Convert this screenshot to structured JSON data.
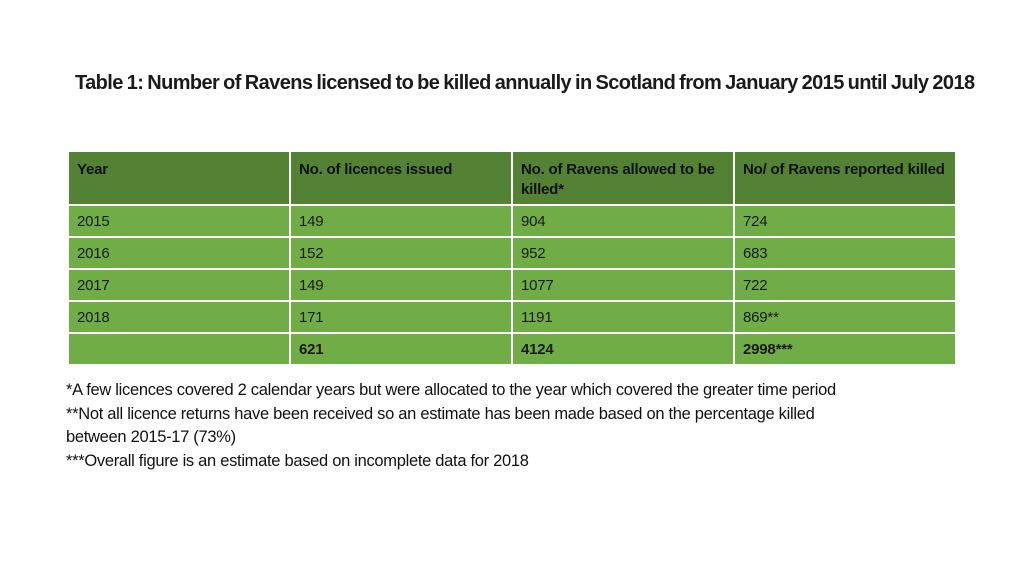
{
  "page": {
    "background_color": "#ffffff",
    "text_color": "#1a1a1a"
  },
  "title": "Table 1: Number of Ravens licensed to be killed annually in Scotland from January 2015 until July 2018",
  "table": {
    "header_bg_color": "#548235",
    "row_bg_color": "#70AD47",
    "grid_color": "#ffffff",
    "columns": [
      "Year",
      "No. of licences issued",
      "No. of Ravens allowed to be killed*",
      "No/ of Ravens reported killed"
    ],
    "rows": [
      [
        "2015",
        "149",
        "904",
        "724"
      ],
      [
        "2016",
        "152",
        "952",
        "683"
      ],
      [
        "2017",
        "149",
        "1077",
        "722"
      ],
      [
        "2018",
        "171",
        "1191",
        "869**"
      ]
    ],
    "totals": [
      "",
      "621",
      "4124",
      "2998***"
    ]
  },
  "footnotes": {
    "lines": [
      "*A few licences covered 2 calendar years but were allocated to the year which covered the greater time period",
      "**Not all licence returns have been received so an estimate has been made based on the percentage killed",
      "between 2015-17 (73%)",
      "***Overall figure is an estimate based on incomplete data for 2018"
    ],
    "notes": [
      "*A few licences covered 2 calendar years but were allocated to the year which covered the greater time period",
      "**Not all licence returns have been received so an estimate has been made based on the percentage killed between 2015-17 (73%)",
      "***Overall figure is an estimate based on incomplete data for 2018"
    ]
  },
  "chart_data": {
    "type": "table",
    "title": "Table 1: Number of Ravens licensed to be killed annually in Scotland from January 2015 until July 2018",
    "columns": [
      "Year",
      "No. of licences issued",
      "No. of Ravens allowed to be killed*",
      "No/ of Ravens reported killed"
    ],
    "rows": [
      {
        "year": "2015",
        "licences_issued": 149,
        "ravens_allowed_killed": 904,
        "ravens_reported_killed": 724
      },
      {
        "year": "2016",
        "licences_issued": 152,
        "ravens_allowed_killed": 952,
        "ravens_reported_killed": 683
      },
      {
        "year": "2017",
        "licences_issued": 149,
        "ravens_allowed_killed": 1077,
        "ravens_reported_killed": 722
      },
      {
        "year": "2018",
        "licences_issued": 171,
        "ravens_allowed_killed": 1191,
        "ravens_reported_killed": "869**"
      }
    ],
    "totals": {
      "licences_issued": 621,
      "ravens_allowed_killed": 4124,
      "ravens_reported_killed": "2998***"
    }
  }
}
